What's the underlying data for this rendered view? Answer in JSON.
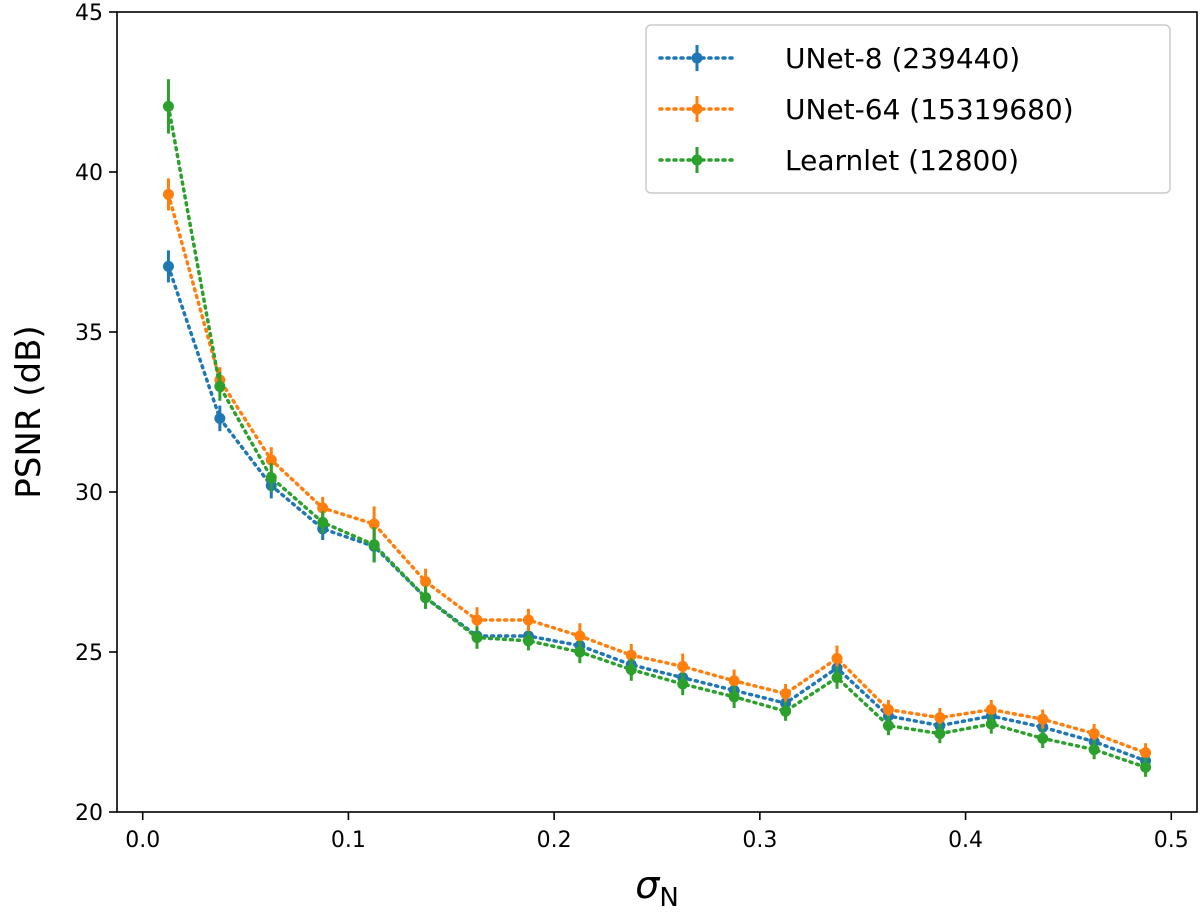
{
  "chart_data": {
    "type": "line",
    "title": "",
    "xlabel": "σ",
    "xlabel_sub": "N",
    "ylabel": "PSNR (dB)",
    "xlim": [
      -0.0125,
      0.5125
    ],
    "ylim": [
      20,
      45
    ],
    "xticks": [
      0.0,
      0.1,
      0.2,
      0.3,
      0.4,
      0.5
    ],
    "xtick_labels": [
      "0.0",
      "0.1",
      "0.2",
      "0.3",
      "0.4",
      "0.5"
    ],
    "yticks": [
      20,
      25,
      30,
      35,
      40,
      45
    ],
    "ytick_labels": [
      "20",
      "25",
      "30",
      "35",
      "40",
      "45"
    ],
    "grid": false,
    "legend_position": "top-right",
    "x": [
      0.0125,
      0.0375,
      0.0625,
      0.0875,
      0.1125,
      0.1375,
      0.1625,
      0.1875,
      0.2125,
      0.2375,
      0.2625,
      0.2875,
      0.3125,
      0.3375,
      0.3625,
      0.3875,
      0.4125,
      0.4375,
      0.4625,
      0.4875
    ],
    "series": [
      {
        "name": "UNet-8 (239440)",
        "color": "#1f77b4",
        "values": [
          37.05,
          32.3,
          30.2,
          28.85,
          28.3,
          26.7,
          25.5,
          25.5,
          25.2,
          24.6,
          24.2,
          23.8,
          23.4,
          24.5,
          23.0,
          22.7,
          23.0,
          22.65,
          22.2,
          21.6
        ],
        "errors": [
          0.5,
          0.4,
          0.4,
          0.35,
          0.5,
          0.35,
          0.35,
          0.3,
          0.35,
          0.35,
          0.35,
          0.35,
          0.3,
          0.3,
          0.3,
          0.3,
          0.3,
          0.3,
          0.3,
          0.3
        ]
      },
      {
        "name": "UNet-64 (15319680)",
        "color": "#ff7f0e",
        "values": [
          39.3,
          33.5,
          31.0,
          29.5,
          29.0,
          27.2,
          26.0,
          26.0,
          25.5,
          24.9,
          24.55,
          24.1,
          23.7,
          24.8,
          23.2,
          22.95,
          23.2,
          22.9,
          22.45,
          21.85
        ],
        "errors": [
          0.5,
          0.4,
          0.4,
          0.35,
          0.55,
          0.4,
          0.4,
          0.35,
          0.4,
          0.35,
          0.4,
          0.35,
          0.3,
          0.4,
          0.3,
          0.3,
          0.3,
          0.3,
          0.3,
          0.3
        ]
      },
      {
        "name": "Learnlet (12800)",
        "color": "#2ca02c",
        "values": [
          42.05,
          33.3,
          30.45,
          29.05,
          28.35,
          26.7,
          25.45,
          25.35,
          25.0,
          24.45,
          24.0,
          23.6,
          23.15,
          24.2,
          22.7,
          22.45,
          22.75,
          22.3,
          21.95,
          21.4
        ],
        "errors": [
          0.85,
          0.45,
          0.45,
          0.35,
          0.55,
          0.35,
          0.35,
          0.3,
          0.35,
          0.35,
          0.35,
          0.35,
          0.3,
          0.35,
          0.3,
          0.3,
          0.3,
          0.3,
          0.3,
          0.3
        ]
      }
    ]
  }
}
